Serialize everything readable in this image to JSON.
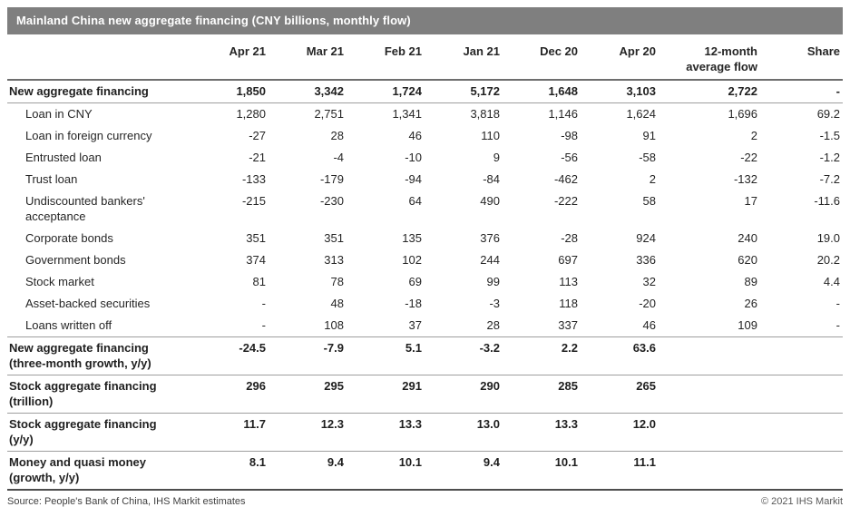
{
  "title": "Mainland China new aggregate financing (CNY billions, monthly flow)",
  "colors": {
    "title_bar_bg": "#7f7f7f",
    "title_text": "#ffffff",
    "body_text": "#262626",
    "header_rule": "#6e6e6e",
    "section_rule": "#9e9e9e",
    "bottom_rule": "#4d4d4d"
  },
  "table": {
    "columns": [
      "Apr 21",
      "Mar 21",
      "Feb 21",
      "Jan 21",
      "Dec 20",
      "Apr 20",
      "12-month\naverage flow",
      "Share"
    ],
    "rows": [
      {
        "lines": [
          "New aggregate financing"
        ],
        "bold": true,
        "indent": false,
        "values": [
          "1,850",
          "3,342",
          "1,724",
          "5,172",
          "1,648",
          "3,103",
          "2,722",
          "-"
        ]
      },
      {
        "lines": [
          "Loan in CNY"
        ],
        "bold": false,
        "indent": true,
        "rule_above": true,
        "values": [
          "1,280",
          "2,751",
          "1,341",
          "3,818",
          "1,146",
          "1,624",
          "1,696",
          "69.2"
        ]
      },
      {
        "lines": [
          "Loan in foreign currency"
        ],
        "bold": false,
        "indent": true,
        "values": [
          "-27",
          "28",
          "46",
          "110",
          "-98",
          "91",
          "2",
          "-1.5"
        ]
      },
      {
        "lines": [
          "Entrusted loan"
        ],
        "bold": false,
        "indent": true,
        "values": [
          "-21",
          "-4",
          "-10",
          "9",
          "-56",
          "-58",
          "-22",
          "-1.2"
        ]
      },
      {
        "lines": [
          "Trust loan"
        ],
        "bold": false,
        "indent": true,
        "values": [
          "-133",
          "-179",
          "-94",
          "-84",
          "-462",
          "2",
          "-132",
          "-7.2"
        ]
      },
      {
        "lines": [
          "Undiscounted bankers'",
          "acceptance"
        ],
        "bold": false,
        "indent": true,
        "values": [
          "-215",
          "-230",
          "64",
          "490",
          "-222",
          "58",
          "17",
          "-11.6"
        ]
      },
      {
        "lines": [
          "Corporate bonds"
        ],
        "bold": false,
        "indent": true,
        "values": [
          "351",
          "351",
          "135",
          "376",
          "-28",
          "924",
          "240",
          "19.0"
        ]
      },
      {
        "lines": [
          "Government bonds"
        ],
        "bold": false,
        "indent": true,
        "values": [
          "374",
          "313",
          "102",
          "244",
          "697",
          "336",
          "620",
          "20.2"
        ]
      },
      {
        "lines": [
          "Stock market"
        ],
        "bold": false,
        "indent": true,
        "values": [
          "81",
          "78",
          "69",
          "99",
          "113",
          "32",
          "89",
          "4.4"
        ]
      },
      {
        "lines": [
          "Asset-backed securities"
        ],
        "bold": false,
        "indent": true,
        "values": [
          "-",
          "48",
          "-18",
          "-3",
          "118",
          "-20",
          "26",
          "-"
        ]
      },
      {
        "lines": [
          "Loans written off"
        ],
        "bold": false,
        "indent": true,
        "values": [
          "-",
          "108",
          "37",
          "28",
          "337",
          "46",
          "109",
          "-"
        ]
      },
      {
        "lines": [
          "New aggregate financing",
          "(three-month growth, y/y)"
        ],
        "bold": true,
        "indent": false,
        "rule_above": true,
        "values": [
          "-24.5",
          "-7.9",
          "5.1",
          "-3.2",
          "2.2",
          "63.6",
          "",
          ""
        ]
      },
      {
        "lines": [
          "Stock aggregate financing",
          "(trillion)"
        ],
        "bold": true,
        "indent": false,
        "rule_above": true,
        "values": [
          "296",
          "295",
          "291",
          "290",
          "285",
          "265",
          "",
          ""
        ]
      },
      {
        "lines": [
          "Stock aggregate financing",
          "(y/y)"
        ],
        "bold": true,
        "indent": false,
        "rule_above": true,
        "values": [
          "11.7",
          "12.3",
          "13.3",
          "13.0",
          "13.3",
          "12.0",
          "",
          ""
        ]
      },
      {
        "lines": [
          "Money and quasi money",
          "(growth, y/y)"
        ],
        "bold": true,
        "indent": false,
        "rule_above": true,
        "values": [
          "8.1",
          "9.4",
          "10.1",
          "9.4",
          "10.1",
          "11.1",
          "",
          ""
        ]
      }
    ]
  },
  "footer": {
    "source": "Source: People's Bank of China, IHS Markit estimates",
    "copyright": "© 2021 IHS Markit"
  }
}
